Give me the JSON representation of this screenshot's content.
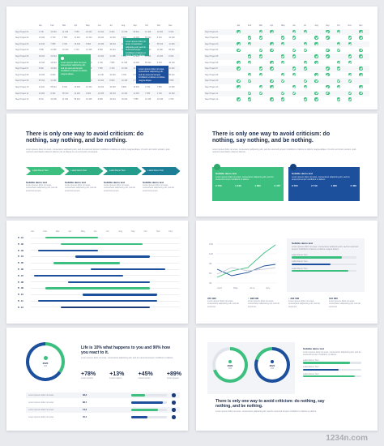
{
  "slide1": {
    "months": [
      "Jan",
      "Feb",
      "Mar",
      "Apr",
      "May",
      "Jun",
      "Jul",
      "Aug",
      "Sep",
      "Oct",
      "Nov",
      "Dec"
    ],
    "rows": [
      {
        "label": "Step Project 01",
        "cells": [
          "2 700",
          "10 340",
          "11 345",
          "7 555",
          "18 234",
          "10 344",
          "8 900",
          "10 345",
          "55 312",
          "11 400",
          "10 200",
          "8 334"
        ]
      },
      {
        "label": "Step Project 02",
        "cells": [
          "10 340",
          "2 700",
          "7 555",
          "11 345",
          "10 344",
          "18 234",
          "10 345",
          "8 900",
          "11 400",
          "55 312",
          "8 334",
          "10 200"
        ]
      },
      {
        "label": "Step Project 03",
        "cells": [
          "11 345",
          "7 555",
          "2 700",
          "10 340",
          "8 900",
          "10 345",
          "18 234",
          "10 344",
          "10 200",
          "8 334",
          "55 312",
          "11 400"
        ]
      },
      {
        "label": "Step Project 04",
        "cells": [
          "7 555",
          "11 345",
          "10 340",
          "2 700",
          "10 345",
          "8 900",
          "10 344",
          "18 234",
          "8 334",
          "10 200",
          "11 400",
          "55 312"
        ]
      },
      {
        "label": "Step Project 05",
        "cells": [
          "18 234",
          "10 344",
          "8 900",
          "10 345",
          "2 700",
          "10 340",
          "11 345",
          "7 555",
          "55 312",
          "11 400",
          "10 200",
          "8 334"
        ]
      },
      {
        "label": "Step Project 06",
        "cells": [
          "10 344",
          "18 234",
          "10 345",
          "8 900",
          "10 340",
          "2 700",
          "7 555",
          "11 345",
          "11 400",
          "55 312",
          "8 334",
          "10 200"
        ]
      },
      {
        "label": "Step Project 07",
        "cells": [
          "8 900",
          "10 345",
          "18 234",
          "10 344",
          "11 345",
          "7 555",
          "2 700",
          "10 340",
          "10 200",
          "8 334",
          "55 312",
          "11 400"
        ]
      },
      {
        "label": "Step Project 08",
        "cells": [
          "10 345",
          "8 900",
          "10 344",
          "18 234",
          "7 555",
          "11 345",
          "10 340",
          "2 700",
          "8 334",
          "10 200",
          "11 400",
          "55 312"
        ]
      },
      {
        "label": "Step Project 09",
        "cells": [
          "55 312",
          "11 400",
          "10 200",
          "8 334",
          "18 234",
          "10 344",
          "8 900",
          "10 345",
          "2 700",
          "10 340",
          "11 345",
          "7 555"
        ]
      },
      {
        "label": "Step Project 10",
        "cells": [
          "11 400",
          "55 312",
          "8 334",
          "10 200",
          "10 344",
          "18 234",
          "10 345",
          "8 900",
          "10 340",
          "2 700",
          "7 555",
          "11 345"
        ]
      },
      {
        "label": "Step Project 11",
        "cells": [
          "10 200",
          "8 334",
          "55 312",
          "11 400",
          "8 900",
          "10 345",
          "18 234",
          "10 344",
          "11 345",
          "7 555",
          "2 700",
          "10 340"
        ]
      },
      {
        "label": "Step Project 12",
        "cells": [
          "8 334",
          "10 200",
          "11 400",
          "55 312",
          "10 345",
          "8 900",
          "10 344",
          "18 234",
          "7 555",
          "11 345",
          "10 340",
          "2 700"
        ]
      }
    ],
    "callout_text": "Lorem ipsum dolor sit amet, consectetur adipiscing elit, sed do eiusmod tempor incididunt ut labore et dolore magna aliqua."
  },
  "slide2": {
    "months": [
      "Jan",
      "Feb",
      "Mar",
      "Apr",
      "May",
      "Jun",
      "Jul",
      "Aug",
      "Sep",
      "Oct",
      "Nov",
      "Dec"
    ],
    "rows": [
      "Step Project 01",
      "Step Project 02",
      "Step Project 03",
      "Step Project 04",
      "Step Project 05",
      "Step Project 06",
      "Step Project 07",
      "Step Project 08",
      "Step Project 09",
      "Step Project 10",
      "Step Project 11",
      "Step Project 12"
    ]
  },
  "slide3": {
    "headline": "There is only one way to avoid criticism: do nothing, say nothing, and be nothing.",
    "body": "Lorem ipsum dolor sit amet, consectetur adipiscing elit, sed do eiusmod tempor incididunt ut labore et dolore magna aliqua. Ut enim ad minim veniam, quis nostrud exercitation ullamco laboris nisi ut aliquip ex ea commodo consequat.",
    "arrows": [
      "Label Demo Text",
      "Label Demo Text",
      "Label Demo Text",
      "Label Demo Text"
    ],
    "subtitles": [
      "Subtitle demo text",
      "Subtitle demo text",
      "Subtitle demo text",
      "Subtitle demo text"
    ],
    "desc": "Lorem ipsum dolor sit amet, consectetur adipiscing elit, sed do eiusmod tempor."
  },
  "slide4": {
    "headline": "There is only one way to avoid criticism: do nothing, say nothing, and be nothing.",
    "body": "Lorem ipsum dolor sit amet, consectetur adipiscing elit, sed do eiusmod tempor incididunt ut labore et dolore magna aliqua. Ut enim ad minim veniam, quis nostrud exercitation ullamco laboris.",
    "card_subtitle": "Subtitle demo text",
    "card_text": "Lorem ipsum dolor sit amet, consectetur adipiscing elit, sed do eiusmod tempor incididunt ut labore.",
    "stats": [
      "2 700",
      "1 340",
      "1 800",
      "2 475",
      "3 700",
      "2 710",
      "1 350",
      "2 460"
    ]
  },
  "slide5": {
    "months": [
      "Jan",
      "Feb",
      "Mar",
      "Apr",
      "May",
      "Jun",
      "Jul",
      "Aug",
      "Sep",
      "Oct",
      "Nov",
      "Dec"
    ],
    "rows": [
      "P - 01",
      "P - 02",
      "P - 03",
      "P - 04",
      "P - 05",
      "P - 06",
      "P - 07",
      "P - 08",
      "P - 09",
      "P - 10",
      "P - 11",
      "P - 12"
    ]
  },
  "slide6": {
    "y_ticks": [
      "150",
      "120",
      "90",
      "60",
      "30"
    ],
    "x_ticks": [
      "April",
      "May",
      "June",
      "July"
    ],
    "subtitle": "Subtitle demo text",
    "paragraph": "Lorem ipsum dolor sit amet, consectetur adipiscing elit, sed do eiusmod tempor incididunt ut labore et dolore magna aliqua.",
    "bar_labels": [
      "Label Demo Text",
      "Label Demo Text",
      "Label Demo Text"
    ],
    "stats": [
      "370 300",
      "↑ 198 000",
      "↓ 340 000",
      "140 000"
    ],
    "stat_text": "Lorem ipsum dolor sit amet, consectetur adipiscing elit, sed do eiusmod."
  },
  "slide7": {
    "ring_year": "2020",
    "ring_value": "330",
    "headline": "Life is 10% what happens to you and 90% how you react to it.",
    "body": "Lorem ipsum dolor sit amet, consectetur adipiscing elit, sed do eiusmod tempor incididunt ut labore.",
    "percents": [
      "+78%",
      "+13%",
      "+45%",
      "+89%"
    ],
    "rows": [
      "Lorem ipsum dolor sit amet",
      "Lorem ipsum dolor sit amet",
      "Lorem ipsum dolor sit amet",
      "Lorem ipsum dolor sit amet"
    ],
    "values": [
      "38,4",
      "88,7",
      "74,2",
      "45,1"
    ]
  },
  "slide8": {
    "ring1_year": "2020",
    "ring1_value": "330",
    "ring2_year": "2021",
    "ring2_value": "330",
    "subtitle": "Subtitle demo text",
    "paragraph": "Lorem ipsum dolor sit amet, consectetur adipiscing elit, sed do eiusmod tempor incididunt ut labore.",
    "bar_labels": [
      "Label Demo Text",
      "Label Demo Text",
      "Label Demo Text"
    ],
    "headline": "There is only one way to avoid criticism: do nothing, say nothing, and be nothing.",
    "body": "Lorem ipsum dolor sit amet, consectetur adipiscing elit, sed do eiusmod tempor incididunt ut labore et dolore."
  },
  "watermark": "1234n.com",
  "colors": {
    "green": "#3dbf7f",
    "blue": "#1c4f9c",
    "navy": "#1c3d7a",
    "bg": "#e9eaee"
  }
}
